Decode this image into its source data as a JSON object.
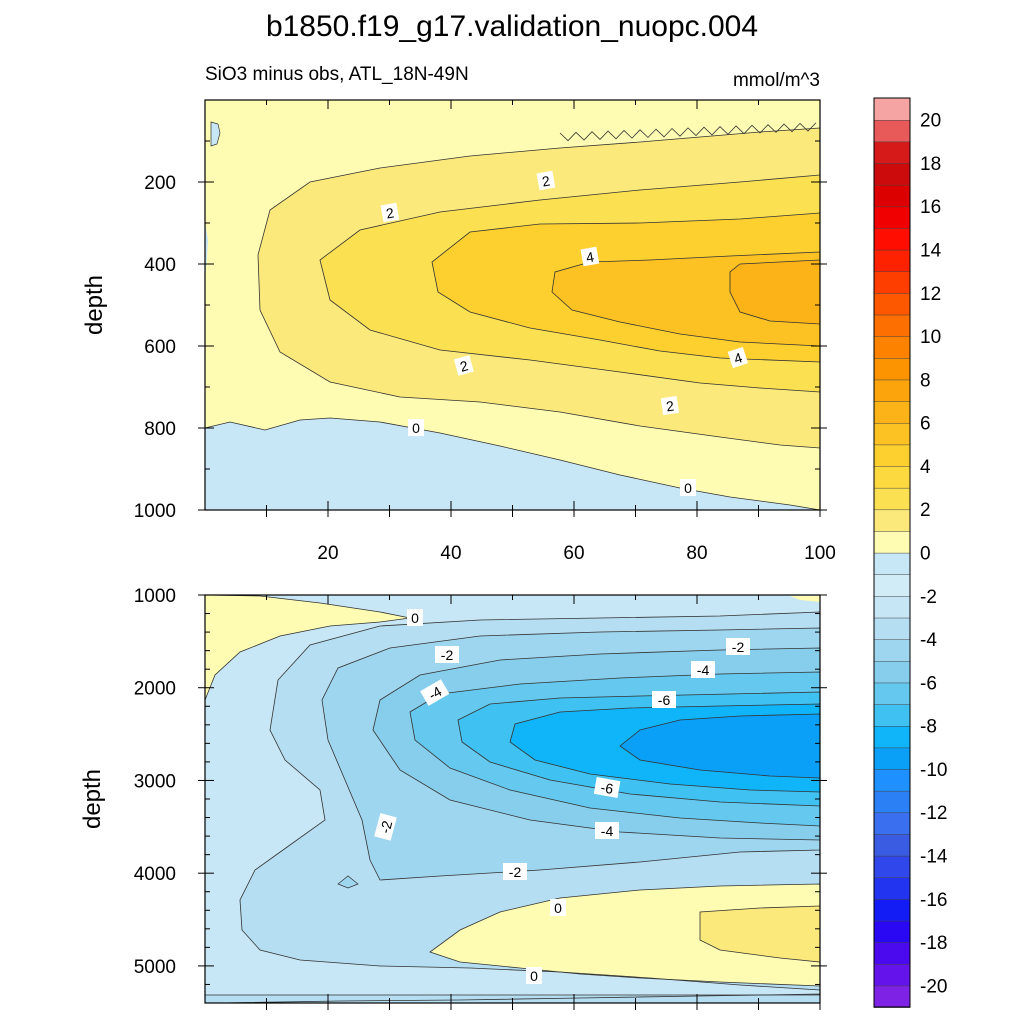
{
  "chart_data": {
    "type": "contour",
    "title": "b1850.f19_g17.validation_nuopc.004",
    "left_string": "SiO3 minus obs, ATL_18N-49N",
    "right_string": "mmol/m^3",
    "colorbar": {
      "ticks": [
        "20",
        "18",
        "16",
        "14",
        "12",
        "10",
        "8",
        "6",
        "4",
        "2",
        "0",
        "-2",
        "-4",
        "-6",
        "-8",
        "-10",
        "-12",
        "-14",
        "-16",
        "-18",
        "-20"
      ],
      "levels": [
        -21,
        -20,
        -19,
        -18,
        -17,
        -16,
        -15,
        -14,
        -13,
        -12,
        -11,
        -10,
        -9,
        -8,
        -7,
        -6,
        -5,
        -4,
        -3,
        -2,
        -1,
        0,
        1,
        2,
        3,
        4,
        5,
        6,
        7,
        8,
        9,
        10,
        11,
        12,
        13,
        14,
        15,
        16,
        17,
        18,
        19,
        20,
        21
      ]
    },
    "panels": [
      {
        "name": "upper",
        "xlabel": "",
        "ylabel": "depth",
        "xlim": [
          0,
          100
        ],
        "ylim": [
          0,
          1000
        ],
        "x_ticks": [
          "20",
          "40",
          "60",
          "80",
          "100"
        ],
        "y_ticks": [
          "200",
          "400",
          "600",
          "800",
          "1000"
        ],
        "contour_labels": [
          "2",
          "2",
          "4",
          "2",
          "4",
          "2",
          "0",
          "0"
        ]
      },
      {
        "name": "lower",
        "xlabel": "",
        "ylabel": "depth",
        "xlim": [
          0,
          100
        ],
        "ylim": [
          1000,
          5400
        ],
        "y_ticks": [
          "1000",
          "2000",
          "3000",
          "4000",
          "5000"
        ],
        "contour_labels": [
          "0",
          "-2",
          "-2",
          "-4",
          "-4",
          "-6",
          "-6",
          "-4",
          "-2",
          "-2",
          "0",
          "0"
        ]
      }
    ]
  }
}
